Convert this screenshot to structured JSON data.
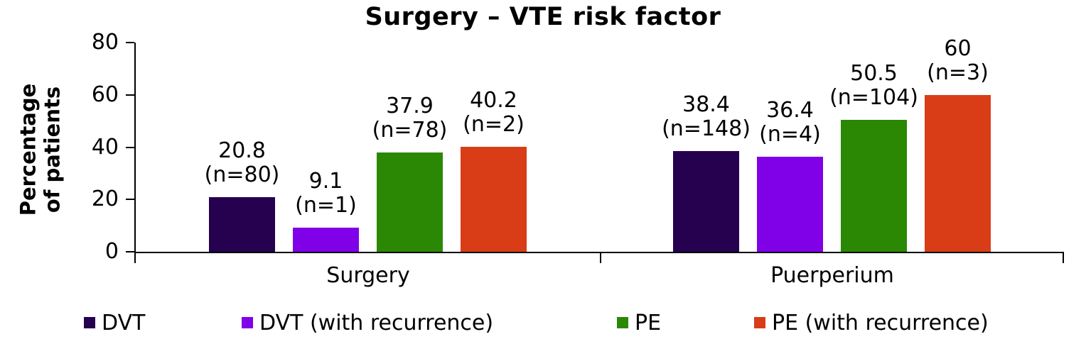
{
  "chart_data": {
    "type": "bar",
    "title": "Surgery – VTE risk factor",
    "ylabel": "Percentage of patients",
    "ylabel_lines": [
      "Percentage",
      "of patients"
    ],
    "categories": [
      "Surgery",
      "Puerperium"
    ],
    "series": [
      {
        "name": "DVT",
        "color": "#250150",
        "points": [
          {
            "value": 20.8,
            "label": "20.8",
            "n": "(n=80)"
          },
          {
            "value": 38.4,
            "label": "38.4",
            "n": "(n=148)"
          }
        ]
      },
      {
        "name": "DVT (with recurrence)",
        "color": "#8000E8",
        "points": [
          {
            "value": 9.1,
            "label": "9.1",
            "n": "(n=1)"
          },
          {
            "value": 36.4,
            "label": "36.4",
            "n": "(n=4)"
          }
        ]
      },
      {
        "name": "PE",
        "color": "#2A8805",
        "points": [
          {
            "value": 37.9,
            "label": "37.9",
            "n": "(n=78)"
          },
          {
            "value": 50.5,
            "label": "50.5",
            "n": "(n=104)"
          }
        ]
      },
      {
        "name": "PE (with recurrence)",
        "color": "#D93D17",
        "points": [
          {
            "value": 40.2,
            "label": "40.2",
            "n": "(n=2)"
          },
          {
            "value": 60,
            "label": "60",
            "n": "(n=3)"
          }
        ]
      }
    ],
    "ylim": [
      0,
      80
    ],
    "yticks": [
      0,
      20,
      40,
      60,
      80
    ],
    "grid": false,
    "legend_position": "bottom",
    "axis_color": "#000000",
    "text_color": "#000000",
    "background": "#FFFFFF"
  }
}
